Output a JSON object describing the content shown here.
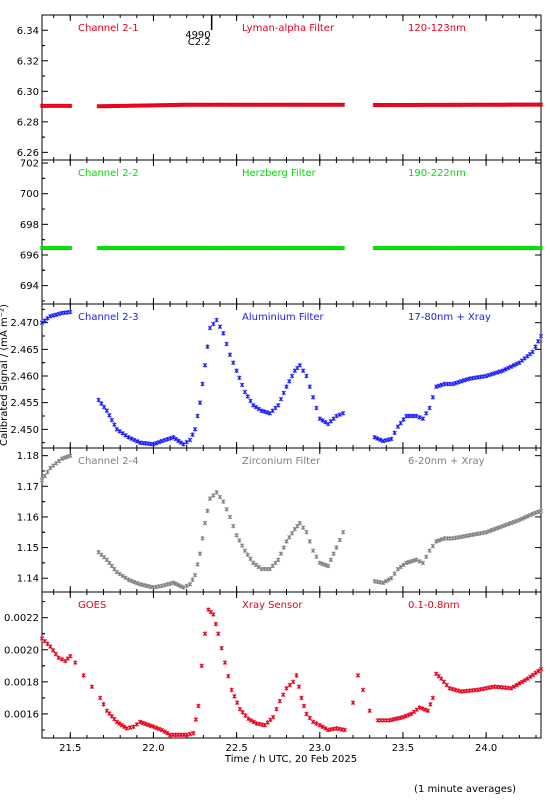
{
  "footnote": "(1 minute averages)",
  "chart_data": {
    "type": "scatter",
    "xlabel": "Time / h UTC, 20 Feb 2025",
    "ylabel": "Calibrated Signal / (mA m⁻²)",
    "xlim": [
      21.33,
      24.33
    ],
    "x_ticks": [
      21.5,
      22.0,
      22.5,
      23.0,
      23.5,
      24.0
    ],
    "x_tick_labels": [
      "21.5",
      "22.0",
      "22.5",
      "23.0",
      "23.5",
      "24.0"
    ],
    "data_gaps": [
      [
        21.51,
        21.67
      ],
      [
        23.14,
        23.33
      ]
    ],
    "marker": {
      "x": 22.35,
      "labels": [
        "4990",
        "C2.2"
      ]
    },
    "panels": [
      {
        "channel": "Channel 2-1",
        "filter": "Lyman-alpha Filter",
        "band": "120-123nm",
        "color": "#e8001a",
        "ylim": [
          6.255,
          6.35
        ],
        "y_ticks": [
          6.26,
          6.28,
          6.3,
          6.32,
          6.34
        ],
        "y_tick_labels": [
          "6.26",
          "6.28",
          "6.30",
          "6.32",
          "6.34"
        ],
        "points": [
          [
            21.33,
            6.2905
          ],
          [
            21.5,
            6.2905
          ],
          [
            21.67,
            6.2902
          ],
          [
            22.0,
            6.2908
          ],
          [
            22.2,
            6.2912
          ],
          [
            22.5,
            6.2912
          ],
          [
            23.14,
            6.2912
          ],
          [
            23.33,
            6.291
          ],
          [
            24.0,
            6.2912
          ],
          [
            24.33,
            6.2913
          ]
        ]
      },
      {
        "channel": "Channel 2-2",
        "filter": "Herzberg Filter",
        "band": "190-222nm",
        "color": "#00dd00",
        "ylim": [
          692.8,
          702.2
        ],
        "y_ticks": [
          694,
          696,
          698,
          700,
          702
        ],
        "y_tick_labels": [
          "694",
          "696",
          "698",
          "700",
          "702"
        ],
        "points": [
          [
            21.33,
            696.45
          ],
          [
            21.5,
            696.45
          ],
          [
            21.67,
            696.45
          ],
          [
            22.5,
            696.45
          ],
          [
            23.14,
            696.45
          ],
          [
            23.33,
            696.45
          ],
          [
            24.33,
            696.45
          ]
        ]
      },
      {
        "channel": "Channel 2-3",
        "filter": "Aluminium Filter",
        "band": "17-80nm + Xray",
        "color": "#1a1aff",
        "ylim": [
          2.4465,
          2.4735
        ],
        "y_ticks": [
          2.45,
          2.455,
          2.46,
          2.465,
          2.47
        ],
        "y_tick_labels": [
          "2.450",
          "2.455",
          "2.460",
          "2.465",
          "2.470"
        ],
        "points": [
          [
            21.33,
            2.47
          ],
          [
            21.38,
            2.4712
          ],
          [
            21.45,
            2.4718
          ],
          [
            21.5,
            2.472
          ],
          [
            21.67,
            2.4555
          ],
          [
            21.72,
            2.4535
          ],
          [
            21.78,
            2.45
          ],
          [
            21.85,
            2.4485
          ],
          [
            21.92,
            2.4475
          ],
          [
            22.0,
            2.4472
          ],
          [
            22.05,
            2.4478
          ],
          [
            22.12,
            2.4485
          ],
          [
            22.18,
            2.4472
          ],
          [
            22.22,
            2.448
          ],
          [
            22.25,
            2.45
          ],
          [
            22.28,
            2.455
          ],
          [
            22.31,
            2.462
          ],
          [
            22.34,
            2.469
          ],
          [
            22.38,
            2.4705
          ],
          [
            22.42,
            2.468
          ],
          [
            22.46,
            2.464
          ],
          [
            22.5,
            2.461
          ],
          [
            22.55,
            2.457
          ],
          [
            22.6,
            2.4545
          ],
          [
            22.65,
            2.4535
          ],
          [
            22.7,
            2.453
          ],
          [
            22.75,
            2.4545
          ],
          [
            22.8,
            2.458
          ],
          [
            22.85,
            2.461
          ],
          [
            22.88,
            2.462
          ],
          [
            22.92,
            2.46
          ],
          [
            22.96,
            2.456
          ],
          [
            23.0,
            2.452
          ],
          [
            23.05,
            2.451
          ],
          [
            23.1,
            2.4525
          ],
          [
            23.14,
            2.453
          ],
          [
            23.33,
            2.4485
          ],
          [
            23.38,
            2.4478
          ],
          [
            23.43,
            2.4482
          ],
          [
            23.47,
            2.4505
          ],
          [
            23.52,
            2.4525
          ],
          [
            23.58,
            2.4525
          ],
          [
            23.62,
            2.452
          ],
          [
            23.66,
            2.454
          ],
          [
            23.7,
            2.458
          ],
          [
            23.75,
            2.4585
          ],
          [
            23.8,
            2.4585
          ],
          [
            23.9,
            2.4595
          ],
          [
            24.0,
            2.46
          ],
          [
            24.1,
            2.461
          ],
          [
            24.2,
            2.4625
          ],
          [
            24.28,
            2.4645
          ],
          [
            24.33,
            2.4675
          ]
        ]
      },
      {
        "channel": "Channel 2-4",
        "filter": "Zirconium Filter",
        "band": "6-20nm + Xray",
        "color": "#808080",
        "ylim": [
          1.1355,
          1.1825
        ],
        "y_ticks": [
          1.14,
          1.15,
          1.16,
          1.17,
          1.18
        ],
        "y_tick_labels": [
          "1.14",
          "1.15",
          "1.16",
          "1.17",
          "1.18"
        ],
        "points": [
          [
            21.33,
            1.172
          ],
          [
            21.38,
            1.176
          ],
          [
            21.45,
            1.179
          ],
          [
            21.5,
            1.18
          ],
          [
            21.67,
            1.1485
          ],
          [
            21.72,
            1.146
          ],
          [
            21.78,
            1.142
          ],
          [
            21.85,
            1.1395
          ],
          [
            21.92,
            1.138
          ],
          [
            22.0,
            1.137
          ],
          [
            22.05,
            1.1375
          ],
          [
            22.12,
            1.1385
          ],
          [
            22.18,
            1.137
          ],
          [
            22.22,
            1.138
          ],
          [
            22.25,
            1.141
          ],
          [
            22.28,
            1.148
          ],
          [
            22.31,
            1.158
          ],
          [
            22.34,
            1.166
          ],
          [
            22.38,
            1.168
          ],
          [
            22.42,
            1.165
          ],
          [
            22.46,
            1.16
          ],
          [
            22.5,
            1.154
          ],
          [
            22.55,
            1.149
          ],
          [
            22.6,
            1.145
          ],
          [
            22.65,
            1.143
          ],
          [
            22.7,
            1.143
          ],
          [
            22.75,
            1.146
          ],
          [
            22.8,
            1.152
          ],
          [
            22.85,
            1.156
          ],
          [
            22.88,
            1.158
          ],
          [
            22.92,
            1.155
          ],
          [
            22.96,
            1.149
          ],
          [
            23.0,
            1.145
          ],
          [
            23.05,
            1.144
          ],
          [
            23.1,
            1.15
          ],
          [
            23.14,
            1.155
          ],
          [
            23.33,
            1.139
          ],
          [
            23.38,
            1.1385
          ],
          [
            23.43,
            1.14
          ],
          [
            23.47,
            1.143
          ],
          [
            23.52,
            1.145
          ],
          [
            23.58,
            1.146
          ],
          [
            23.62,
            1.145
          ],
          [
            23.66,
            1.149
          ],
          [
            23.7,
            1.152
          ],
          [
            23.75,
            1.153
          ],
          [
            23.8,
            1.153
          ],
          [
            23.9,
            1.154
          ],
          [
            24.0,
            1.155
          ],
          [
            24.1,
            1.157
          ],
          [
            24.2,
            1.159
          ],
          [
            24.28,
            1.161
          ],
          [
            24.33,
            1.162
          ]
        ]
      },
      {
        "channel": "GOES",
        "filter": "Xray Sensor",
        "band": "0.1-0.8nm",
        "color": "#e8001a",
        "ylim": [
          0.00145,
          0.00236
        ],
        "y_ticks": [
          0.0016,
          0.0018,
          0.002,
          0.0022
        ],
        "y_tick_labels": [
          "0.0016",
          "0.0018",
          "0.0020",
          "0.0022"
        ],
        "points": [
          [
            21.33,
            0.00207
          ],
          [
            21.38,
            0.00202
          ],
          [
            21.43,
            0.00195
          ],
          [
            21.47,
            0.00193
          ],
          [
            21.5,
            0.00196
          ],
          [
            21.53,
            0.00192
          ],
          [
            21.58,
            0.00184
          ],
          [
            21.63,
            0.00177
          ],
          [
            21.68,
            0.0017
          ],
          [
            21.72,
            0.00162
          ],
          [
            21.78,
            0.00155
          ],
          [
            21.84,
            0.00151
          ],
          [
            21.88,
            0.00152
          ],
          [
            21.92,
            0.00155
          ],
          [
            22.0,
            0.00152
          ],
          [
            22.05,
            0.0015
          ],
          [
            22.1,
            0.00147
          ],
          [
            22.15,
            0.00147
          ],
          [
            22.2,
            0.00147
          ],
          [
            22.24,
            0.00148
          ],
          [
            22.27,
            0.00165
          ],
          [
            22.29,
            0.0019
          ],
          [
            22.31,
            0.0021
          ],
          [
            22.33,
            0.00225
          ],
          [
            22.36,
            0.00222
          ],
          [
            22.39,
            0.0021
          ],
          [
            22.43,
            0.00192
          ],
          [
            22.47,
            0.00175
          ],
          [
            22.52,
            0.00163
          ],
          [
            22.57,
            0.00157
          ],
          [
            22.62,
            0.00154
          ],
          [
            22.67,
            0.00153
          ],
          [
            22.72,
            0.00158
          ],
          [
            22.76,
            0.00168
          ],
          [
            22.8,
            0.00176
          ],
          [
            22.84,
            0.0018
          ],
          [
            22.86,
            0.00184
          ],
          [
            22.89,
            0.0017
          ],
          [
            22.92,
            0.0016
          ],
          [
            22.96,
            0.00155
          ],
          [
            23.0,
            0.00153
          ],
          [
            23.05,
            0.0015
          ],
          [
            23.1,
            0.00151
          ],
          [
            23.15,
            0.0015
          ],
          [
            23.2,
            0.00167
          ],
          [
            23.23,
            0.00184
          ],
          [
            23.26,
            0.00175
          ],
          [
            23.3,
            0.00162
          ],
          [
            23.35,
            0.00156
          ],
          [
            23.42,
            0.00156
          ],
          [
            23.5,
            0.00158
          ],
          [
            23.55,
            0.0016
          ],
          [
            23.6,
            0.00164
          ],
          [
            23.65,
            0.00162
          ],
          [
            23.68,
            0.0017
          ],
          [
            23.7,
            0.00185
          ],
          [
            23.73,
            0.00182
          ],
          [
            23.78,
            0.00176
          ],
          [
            23.85,
            0.00174
          ],
          [
            23.95,
            0.00175
          ],
          [
            24.05,
            0.00177
          ],
          [
            24.15,
            0.00176
          ],
          [
            24.25,
            0.00182
          ],
          [
            24.33,
            0.00188
          ]
        ]
      }
    ]
  }
}
